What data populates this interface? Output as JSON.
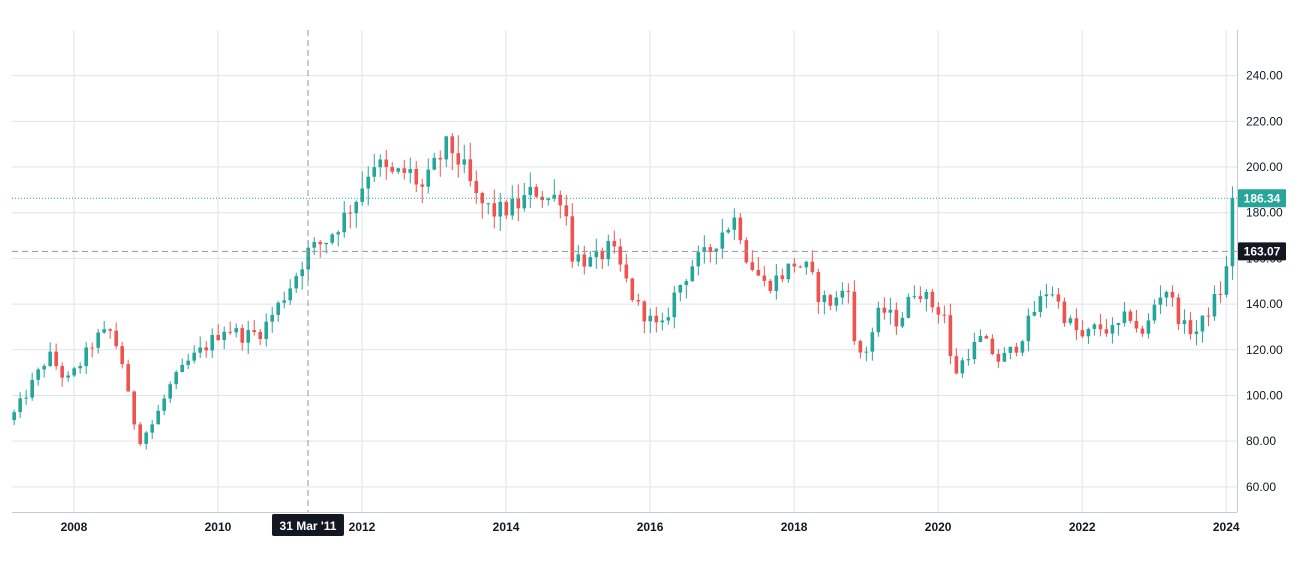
{
  "chart_data": {
    "type": "candlestick",
    "title": "",
    "xlabel": "",
    "ylabel": "",
    "x_range": [
      2007.14,
      2024.15
    ],
    "y_range": [
      49,
      260
    ],
    "grid": true,
    "y_ticks": [
      "60.00",
      "80.00",
      "100.00",
      "120.00",
      "140.00",
      "160.00",
      "180.00",
      "200.00",
      "220.00",
      "240.00"
    ],
    "x_ticks": [
      "2008",
      "2010",
      "2012",
      "2014",
      "2016",
      "2018",
      "2020",
      "2022",
      "2024"
    ],
    "last_price": {
      "value": 186.34,
      "label": "186.34",
      "color": "#26a69a"
    },
    "crosshair": {
      "price_label": "163.07",
      "price_value": 163.07,
      "date_label": "31 Mar '11",
      "date_value": 2011.25
    },
    "colors": {
      "up": "#26a69a",
      "down": "#ef5350",
      "grid": "#e0e3eb",
      "axis_text": "#131722",
      "tag_bg": "#131722"
    },
    "anchor_closes": [
      [
        2007.17,
        92
      ],
      [
        2007.4,
        104
      ],
      [
        2007.65,
        118
      ],
      [
        2007.9,
        106
      ],
      [
        2008.05,
        112
      ],
      [
        2008.3,
        125
      ],
      [
        2008.5,
        128
      ],
      [
        2008.65,
        118
      ],
      [
        2008.75,
        100
      ],
      [
        2008.9,
        80
      ],
      [
        2009.1,
        88
      ],
      [
        2009.35,
        105
      ],
      [
        2009.6,
        115
      ],
      [
        2009.85,
        122
      ],
      [
        2010.1,
        130
      ],
      [
        2010.35,
        126
      ],
      [
        2010.6,
        128
      ],
      [
        2010.85,
        140
      ],
      [
        2011.0,
        148
      ],
      [
        2011.25,
        163
      ],
      [
        2011.5,
        168
      ],
      [
        2011.75,
        178
      ],
      [
        2011.95,
        188
      ],
      [
        2012.15,
        203
      ],
      [
        2012.4,
        196
      ],
      [
        2012.65,
        198
      ],
      [
        2012.85,
        190
      ],
      [
        2013.0,
        200
      ],
      [
        2013.2,
        210
      ],
      [
        2013.4,
        200
      ],
      [
        2013.6,
        185
      ],
      [
        2013.85,
        180
      ],
      [
        2014.15,
        183
      ],
      [
        2014.4,
        190
      ],
      [
        2014.6,
        186
      ],
      [
        2014.8,
        188
      ],
      [
        2014.9,
        162
      ],
      [
        2015.2,
        158
      ],
      [
        2015.45,
        165
      ],
      [
        2015.6,
        155
      ],
      [
        2015.8,
        140
      ],
      [
        2016.0,
        133
      ],
      [
        2016.15,
        128
      ],
      [
        2016.35,
        145
      ],
      [
        2016.6,
        158
      ],
      [
        2016.8,
        162
      ],
      [
        2017.0,
        172
      ],
      [
        2017.2,
        178
      ],
      [
        2017.35,
        160
      ],
      [
        2017.6,
        148
      ],
      [
        2017.8,
        152
      ],
      [
        2018.0,
        158
      ],
      [
        2018.2,
        155
      ],
      [
        2018.35,
        143
      ],
      [
        2018.55,
        140
      ],
      [
        2018.75,
        150
      ],
      [
        2018.85,
        118
      ],
      [
        2019.0,
        120
      ],
      [
        2019.2,
        138
      ],
      [
        2019.45,
        132
      ],
      [
        2019.7,
        148
      ],
      [
        2019.9,
        140
      ],
      [
        2020.1,
        135
      ],
      [
        2020.2,
        108
      ],
      [
        2020.4,
        118
      ],
      [
        2020.6,
        125
      ],
      [
        2020.85,
        115
      ],
      [
        2021.1,
        122
      ],
      [
        2021.35,
        138
      ],
      [
        2021.55,
        148
      ],
      [
        2021.75,
        135
      ],
      [
        2022.0,
        125
      ],
      [
        2022.2,
        130
      ],
      [
        2022.45,
        128
      ],
      [
        2022.65,
        136
      ],
      [
        2022.85,
        125
      ],
      [
        2023.0,
        140
      ],
      [
        2023.15,
        148
      ],
      [
        2023.4,
        130
      ],
      [
        2023.6,
        128
      ],
      [
        2023.8,
        140
      ],
      [
        2023.95,
        147
      ],
      [
        2024.05,
        162
      ],
      [
        2024.12,
        186.34
      ]
    ]
  }
}
